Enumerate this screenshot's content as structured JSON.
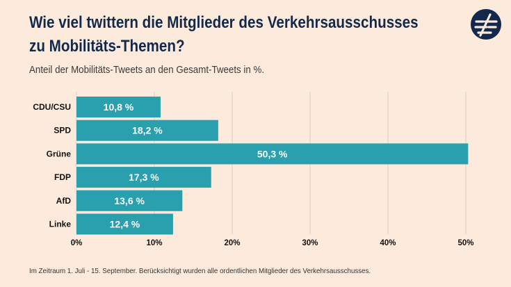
{
  "title_line1": "Wie viel twittern die Mitglieder des Verkehrsausschusses",
  "title_line2": "zu Mobilitäts-Themen?",
  "subtitle": "Anteil der Mobilitäts-Tweets an den Gesamt-Tweets in %.",
  "footnote": "Im Zeitraum 1. Juli - 15. September. Berücksichtigt wurden alle ordentlichen Mitglieder des Verkehrsausschusses.",
  "logo_icon": "organization-logo-icon",
  "colors": {
    "bar": "#2a9fad",
    "title": "#13294b",
    "grid": "#d9d0c4",
    "background": "#fcebdc"
  },
  "chart_data": {
    "type": "bar",
    "orientation": "horizontal",
    "categories": [
      "CDU/CSU",
      "SPD",
      "Grüne",
      "FDP",
      "AfD",
      "Linke"
    ],
    "values": [
      10.8,
      18.2,
      50.3,
      17.3,
      13.6,
      12.4
    ],
    "value_labels": [
      "10,8 %",
      "18,2 %",
      "50,3 %",
      "17,3 %",
      "13,6 %",
      "12,4 %"
    ],
    "xlim": [
      0,
      50
    ],
    "xticks": [
      0,
      10,
      20,
      30,
      40,
      50
    ],
    "xtick_labels": [
      "0%",
      "10%",
      "20%",
      "30%",
      "40%",
      "50%"
    ],
    "grid": true
  }
}
